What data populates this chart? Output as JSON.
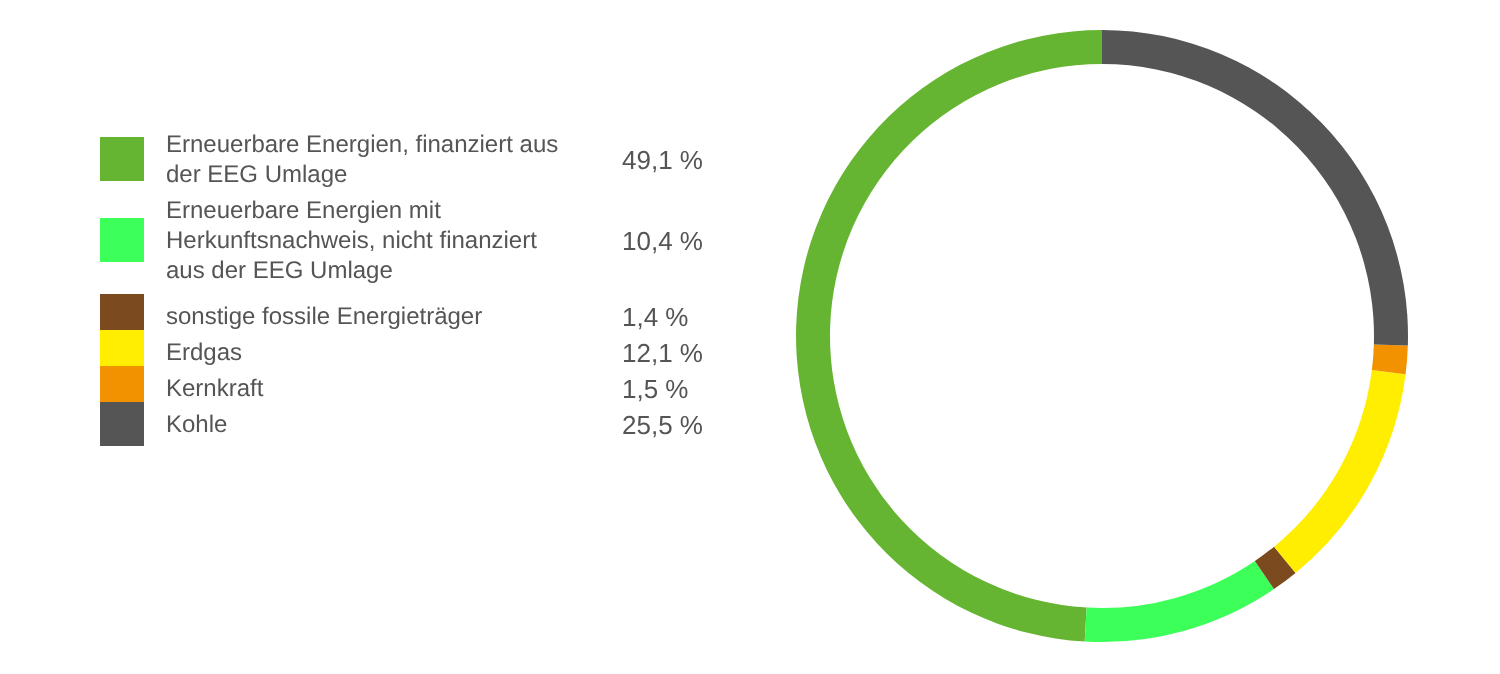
{
  "chart_data": {
    "type": "donut",
    "categories": [
      "Erneuerbare Energien, finanziert aus der EEG Umlage",
      "Erneuerbare Energien mit Herkunftsnachweis, nicht finanziert aus der EEG Umlage",
      "sonstige fossile Energieträger",
      "Erdgas",
      "Kernkraft",
      "Kohle"
    ],
    "values": [
      49.1,
      10.4,
      1.4,
      12.1,
      1.5,
      25.5
    ],
    "value_labels": [
      "49,1 %",
      "10,4 %",
      "1,4 %",
      "12,1 %",
      "1,5 %",
      "25,5 %"
    ],
    "colors": [
      "#66b532",
      "#3cff5a",
      "#7b4a1e",
      "#ffee00",
      "#f39200",
      "#555555"
    ],
    "legend": "left"
  }
}
